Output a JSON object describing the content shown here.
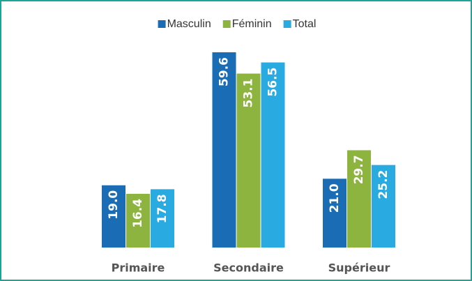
{
  "chart_data": {
    "type": "bar",
    "categories": [
      "Primaire",
      "Secondaire",
      "Supérieur"
    ],
    "series": [
      {
        "name": "Masculin",
        "color": "#1a6db4",
        "values": [
          19.0,
          59.6,
          21.0
        ],
        "value_labels": [
          "19.0",
          "59.6",
          "21.0"
        ]
      },
      {
        "name": "Féminin",
        "color": "#8cb43f",
        "values": [
          16.4,
          53.1,
          29.7
        ],
        "value_labels": [
          "16.4",
          "53.1",
          "29.7"
        ]
      },
      {
        "name": "Total",
        "color": "#29abe2",
        "values": [
          17.8,
          56.5,
          25.2
        ],
        "value_labels": [
          "17.8",
          "56.5",
          "25.2"
        ]
      }
    ],
    "legend": "top"
  }
}
